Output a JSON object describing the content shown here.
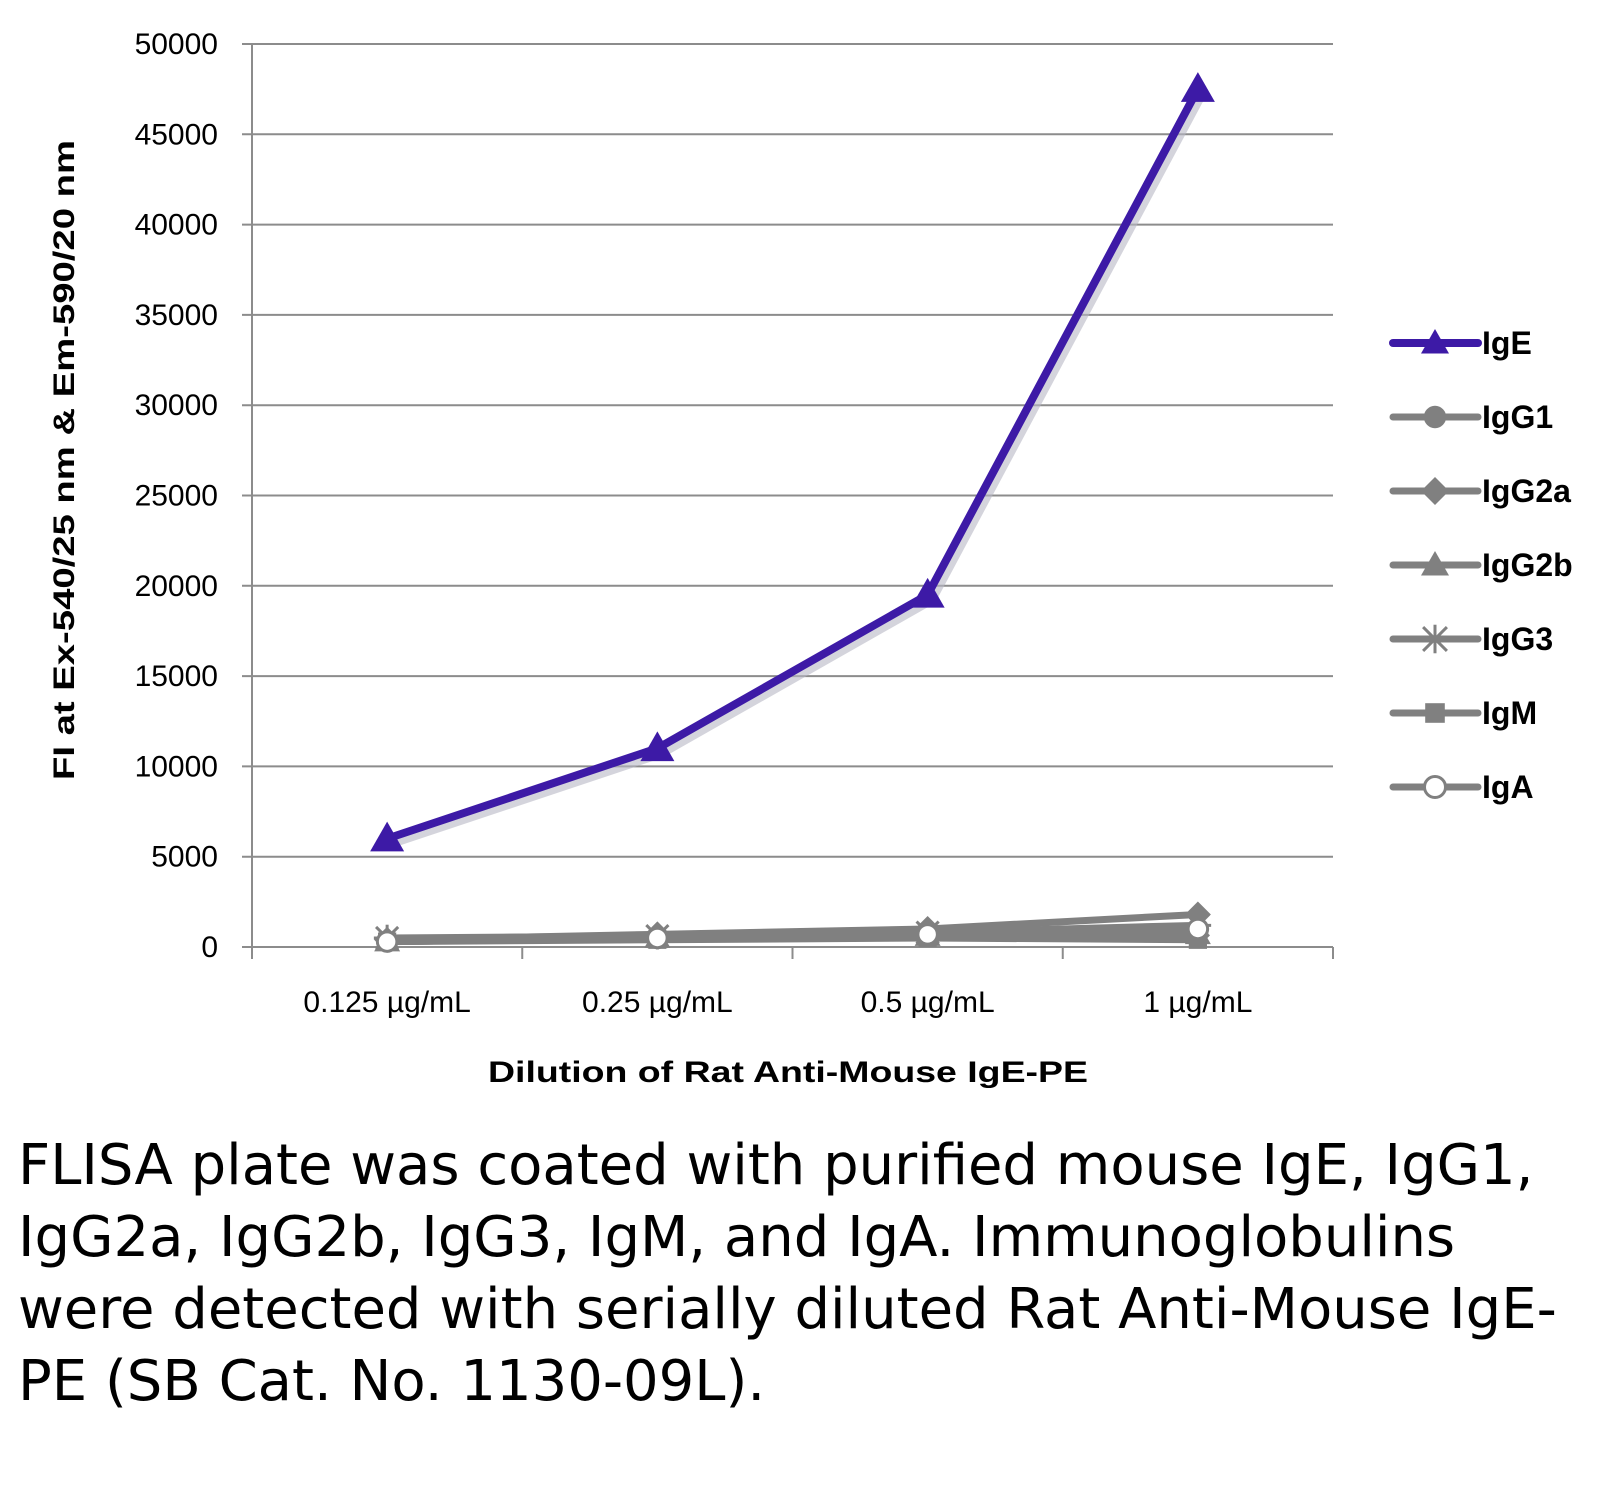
{
  "chart_data": {
    "type": "line",
    "title": "",
    "xlabel": "Dilution of Rat Anti-Mouse IgE-PE",
    "ylabel": "FI at Ex-540/25 nm & Em-590/20 nm",
    "categories": [
      "0.125 µg/mL",
      "0.25 µg/mL",
      "0.5 µg/mL",
      "1 µg/mL"
    ],
    "ylim": [
      0,
      50000
    ],
    "yticks": [
      0,
      5000,
      10000,
      15000,
      20000,
      25000,
      30000,
      35000,
      40000,
      45000,
      50000
    ],
    "grid": true,
    "legend_position": "right",
    "series": [
      {
        "name": "IgE",
        "marker": "triangle",
        "color": "#3d1aa6",
        "values": [
          6000,
          11000,
          19500,
          47500
        ]
      },
      {
        "name": "IgG1",
        "marker": "circle",
        "color": "#808080",
        "values": [
          300,
          500,
          600,
          700
        ]
      },
      {
        "name": "IgG2a",
        "marker": "diamond",
        "color": "#808080",
        "values": [
          400,
          700,
          1000,
          1800
        ]
      },
      {
        "name": "IgG2b",
        "marker": "triangle",
        "color": "#808080",
        "values": [
          300,
          500,
          600,
          700
        ]
      },
      {
        "name": "IgG3",
        "marker": "star",
        "color": "#808080",
        "values": [
          500,
          600,
          800,
          1200
        ]
      },
      {
        "name": "IgM",
        "marker": "square",
        "color": "#808080",
        "values": [
          300,
          400,
          500,
          400
        ]
      },
      {
        "name": "IgA",
        "marker": "open-circle",
        "color": "#808080",
        "values": [
          300,
          500,
          700,
          1000
        ]
      }
    ]
  },
  "caption": "FLISA plate was coated with purified mouse IgE, IgG1, IgG2a, IgG2b, IgG3, IgM, and IgA. Immunoglobulins were detected with serially diluted Rat Anti-Mouse IgE-PE (SB Cat. No. 1130-09L)."
}
